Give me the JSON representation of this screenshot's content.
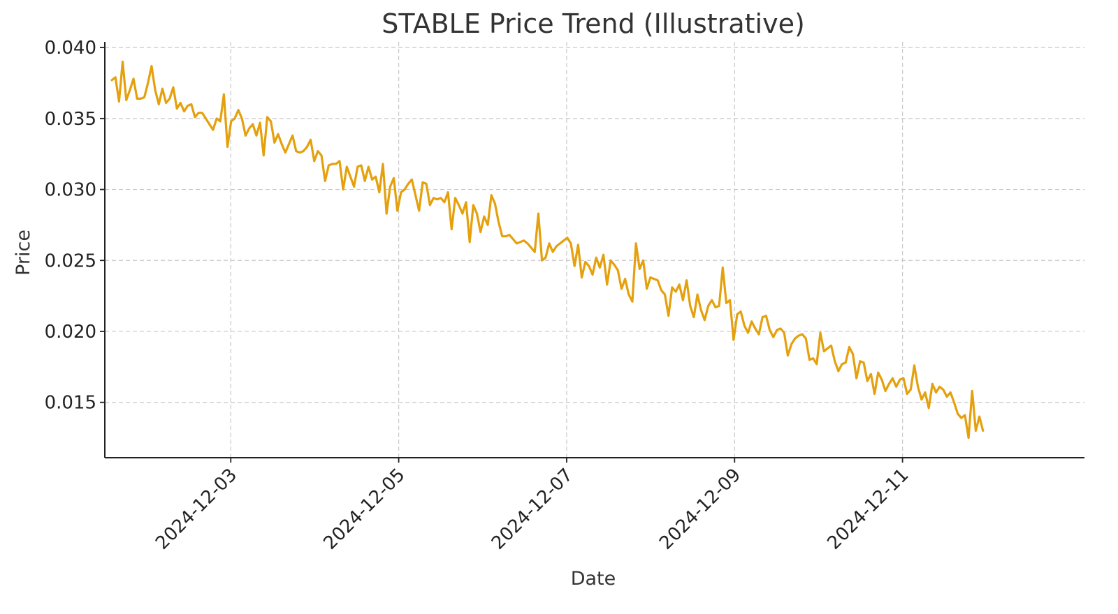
{
  "chart_data": {
    "type": "line",
    "title": "STABLE Price Trend (Illustrative)",
    "xlabel": "Date",
    "ylabel": "Price",
    "x_tick_labels": [
      "2024-12-03",
      "2024-12-05",
      "2024-12-07",
      "2024-12-09",
      "2024-12-11"
    ],
    "y_tick_labels": [
      "0.015",
      "0.020",
      "0.025",
      "0.030",
      "0.035",
      "0.040"
    ],
    "y_ticks": [
      0.015,
      0.02,
      0.025,
      0.03,
      0.035,
      0.04
    ],
    "xlim": [
      "2024-12-01T12:00",
      "2024-12-13T04:00"
    ],
    "ylim": [
      0.0111,
      0.0404
    ],
    "grid": true,
    "legend": "none",
    "line_color": "#E5A00D",
    "series": [
      {
        "x_start": "2024-12-01T14:00",
        "x_end": "2024-12-11T23:00",
        "values": [
          0.0377,
          0.0379,
          0.0362,
          0.039,
          0.0363,
          0.037,
          0.0378,
          0.0364,
          0.0364,
          0.0365,
          0.0375,
          0.0387,
          0.037,
          0.036,
          0.0371,
          0.0361,
          0.0364,
          0.0372,
          0.0357,
          0.0361,
          0.0355,
          0.0359,
          0.036,
          0.0351,
          0.0354,
          0.0354,
          0.035,
          0.0346,
          0.0342,
          0.035,
          0.0348,
          0.0367,
          0.033,
          0.0348,
          0.035,
          0.0356,
          0.035,
          0.0338,
          0.0343,
          0.0346,
          0.0338,
          0.0347,
          0.0324,
          0.0351,
          0.0348,
          0.0333,
          0.0339,
          0.0332,
          0.0326,
          0.0332,
          0.0338,
          0.0327,
          0.0326,
          0.0327,
          0.033,
          0.0335,
          0.032,
          0.0327,
          0.0324,
          0.0306,
          0.0317,
          0.0318,
          0.0318,
          0.032,
          0.03,
          0.0316,
          0.0309,
          0.0302,
          0.0316,
          0.0317,
          0.0306,
          0.0316,
          0.0307,
          0.0309,
          0.0298,
          0.0318,
          0.0283,
          0.0302,
          0.0308,
          0.0285,
          0.0298,
          0.03,
          0.0304,
          0.0307,
          0.0296,
          0.0285,
          0.0305,
          0.0304,
          0.0289,
          0.0294,
          0.0293,
          0.0294,
          0.0291,
          0.0298,
          0.0272,
          0.0294,
          0.0289,
          0.0283,
          0.0291,
          0.0263,
          0.0289,
          0.0283,
          0.027,
          0.0281,
          0.0275,
          0.0296,
          0.029,
          0.0277,
          0.0267,
          0.0267,
          0.0268,
          0.0265,
          0.0262,
          0.0263,
          0.0264,
          0.0262,
          0.0259,
          0.0256,
          0.0283,
          0.025,
          0.0252,
          0.0262,
          0.0256,
          0.026,
          0.0262,
          0.0264,
          0.0266,
          0.0262,
          0.0246,
          0.0261,
          0.0238,
          0.0249,
          0.0246,
          0.024,
          0.0252,
          0.0245,
          0.0254,
          0.0233,
          0.025,
          0.0247,
          0.0243,
          0.023,
          0.0237,
          0.0226,
          0.0221,
          0.0262,
          0.0244,
          0.025,
          0.023,
          0.0238,
          0.0237,
          0.0236,
          0.0229,
          0.0226,
          0.0211,
          0.0231,
          0.0228,
          0.0233,
          0.0222,
          0.0236,
          0.0218,
          0.021,
          0.0226,
          0.0215,
          0.0208,
          0.0218,
          0.0222,
          0.0217,
          0.0218,
          0.0245,
          0.022,
          0.0222,
          0.0194,
          0.0212,
          0.0214,
          0.0204,
          0.0199,
          0.0207,
          0.0202,
          0.0198,
          0.021,
          0.0211,
          0.0201,
          0.0196,
          0.0201,
          0.0202,
          0.0199,
          0.0183,
          0.0191,
          0.0195,
          0.0197,
          0.0198,
          0.0195,
          0.018,
          0.0181,
          0.0177,
          0.0199,
          0.0186,
          0.0188,
          0.019,
          0.0179,
          0.0172,
          0.0177,
          0.0178,
          0.0189,
          0.0184,
          0.0167,
          0.0179,
          0.0178,
          0.0165,
          0.017,
          0.0156,
          0.0171,
          0.0166,
          0.0158,
          0.0163,
          0.0167,
          0.0161,
          0.0166,
          0.0167,
          0.0156,
          0.0159,
          0.0176,
          0.0161,
          0.0152,
          0.0157,
          0.0146,
          0.0163,
          0.0157,
          0.0161,
          0.0159,
          0.0154,
          0.0157,
          0.015,
          0.0142,
          0.0139,
          0.0141,
          0.0125,
          0.0158,
          0.013,
          0.014,
          0.013
        ]
      }
    ]
  }
}
